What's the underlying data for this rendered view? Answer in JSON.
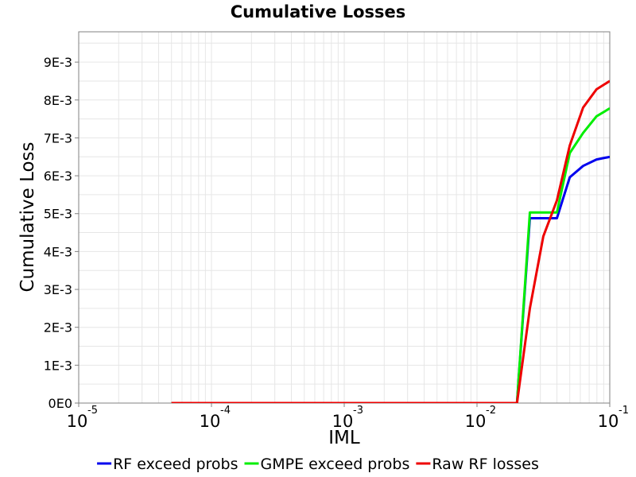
{
  "chart_data": {
    "type": "line",
    "title": "Cumulative Losses",
    "xlabel": "IML",
    "ylabel": "Cumulative Loss",
    "x_scale": "log",
    "xlim": [
      1e-05,
      0.1
    ],
    "ylim": [
      0,
      0.0098
    ],
    "grid": true,
    "legend_position": "bottom",
    "x_ticks": [
      {
        "value": 1e-05,
        "base": "10",
        "exp": "-5"
      },
      {
        "value": 0.0001,
        "base": "10",
        "exp": "-4"
      },
      {
        "value": 0.001,
        "base": "10",
        "exp": "-3"
      },
      {
        "value": 0.01,
        "base": "10",
        "exp": "-2"
      },
      {
        "value": 0.1,
        "base": "10",
        "exp": "-1"
      }
    ],
    "y_ticks": [
      {
        "value": 0,
        "label": "0E0"
      },
      {
        "value": 0.001,
        "label": "1E-3"
      },
      {
        "value": 0.002,
        "label": "2E-3"
      },
      {
        "value": 0.003,
        "label": "3E-3"
      },
      {
        "value": 0.004,
        "label": "4E-3"
      },
      {
        "value": 0.005,
        "label": "5E-3"
      },
      {
        "value": 0.006,
        "label": "6E-3"
      },
      {
        "value": 0.007,
        "label": "7E-3"
      },
      {
        "value": 0.008,
        "label": "8E-3"
      },
      {
        "value": 0.009,
        "label": "9E-3"
      }
    ],
    "series": [
      {
        "name": "RF exceed probs",
        "color": "#0000ee",
        "points": [
          [
            5e-05,
            0
          ],
          [
            0.0001,
            0
          ],
          [
            0.001,
            0
          ],
          [
            0.01,
            0
          ],
          [
            0.02,
            0
          ],
          [
            0.025,
            0.00488
          ],
          [
            0.0316,
            0.00488
          ],
          [
            0.04,
            0.00488
          ],
          [
            0.05,
            0.00596
          ],
          [
            0.063,
            0.00626
          ],
          [
            0.0794,
            0.00643
          ],
          [
            0.1,
            0.0065
          ]
        ]
      },
      {
        "name": "GMPE exceed probs",
        "color": "#00ee00",
        "points": [
          [
            5e-05,
            0
          ],
          [
            0.0001,
            0
          ],
          [
            0.001,
            0
          ],
          [
            0.01,
            0
          ],
          [
            0.02,
            0
          ],
          [
            0.025,
            0.00503
          ],
          [
            0.0316,
            0.00503
          ],
          [
            0.04,
            0.00503
          ],
          [
            0.05,
            0.0066
          ],
          [
            0.063,
            0.00713
          ],
          [
            0.0794,
            0.00757
          ],
          [
            0.1,
            0.00778
          ]
        ]
      },
      {
        "name": "Raw RF losses",
        "color": "#ee0000",
        "points": [
          [
            5e-05,
            0
          ],
          [
            0.0001,
            0
          ],
          [
            0.001,
            0
          ],
          [
            0.01,
            0
          ],
          [
            0.02,
            0
          ],
          [
            0.025,
            0.0025
          ],
          [
            0.0316,
            0.0044
          ],
          [
            0.04,
            0.00535
          ],
          [
            0.05,
            0.0068
          ],
          [
            0.063,
            0.0078
          ],
          [
            0.0794,
            0.00828
          ],
          [
            0.1,
            0.0085
          ]
        ]
      }
    ]
  }
}
